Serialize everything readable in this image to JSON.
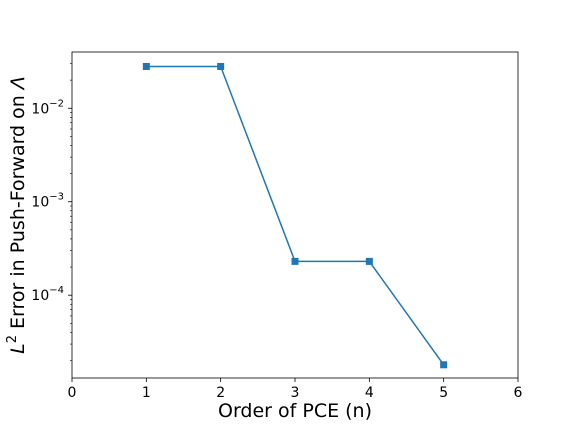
{
  "chart_data": {
    "type": "line",
    "title": "",
    "xlabel": "Order of PCE (n)",
    "ylabel_parts": {
      "symbol": "L",
      "exponent": "2",
      "text": " Error in Push-Forward on ",
      "domain": "Λ"
    },
    "xlim": [
      0,
      6
    ],
    "ylim": [
      1.3e-05,
      0.04
    ],
    "yscale": "log",
    "grid": false,
    "legend": "none",
    "x_ticks": [
      0,
      1,
      2,
      3,
      4,
      5,
      6
    ],
    "y_ticks": [
      {
        "value": 0.01,
        "base": "10",
        "exp": "−2"
      },
      {
        "value": 0.001,
        "base": "10",
        "exp": "−3"
      },
      {
        "value": 0.0001,
        "base": "10",
        "exp": "−4"
      }
    ],
    "series": [
      {
        "color": "#1f77b4",
        "marker": "square",
        "x": [
          1,
          2,
          3,
          4,
          5
        ],
        "y": [
          0.028,
          0.028,
          0.00023,
          0.00023,
          1.8e-05
        ]
      }
    ]
  }
}
